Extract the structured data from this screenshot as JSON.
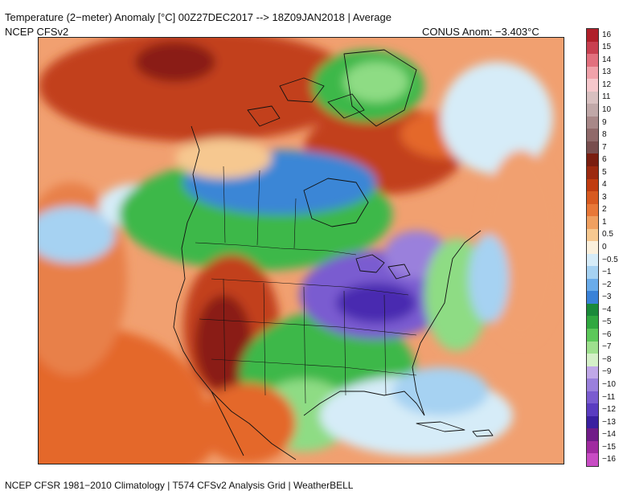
{
  "header": {
    "title": "Temperature (2−meter) Anomaly  [°C] 00Z27DEC2017 --> 18Z09JAN2018 | Average",
    "model": "NCEP CFSv2",
    "conus_anomaly": "CONUS Anom: −3.403°C"
  },
  "footer": "NCEP CFSR 1981−2010 Climatology | T574 CFSv2 Analysis Grid | WeatherBELL",
  "colorbar": {
    "labels": [
      "16",
      "15",
      "14",
      "13",
      "12",
      "11",
      "10",
      "9",
      "8",
      "7",
      "6",
      "5",
      "4",
      "3",
      "2",
      "1",
      "0.5",
      "0",
      "−0.5",
      "−1",
      "−2",
      "−3",
      "−4",
      "−5",
      "−6",
      "−7",
      "−8",
      "−9",
      "−10",
      "−11",
      "−12",
      "−13",
      "−14",
      "−15",
      "−16"
    ],
    "colors": [
      "#b0202a",
      "#c84050",
      "#e2707e",
      "#f0a2aa",
      "#f6c8cc",
      "#d8c0c0",
      "#c0a8a8",
      "#a88888",
      "#906a6a",
      "#784e4e",
      "#7a1e10",
      "#9c2a10",
      "#c03c10",
      "#d85a20",
      "#e87838",
      "#f0a060",
      "#f6c890",
      "#fbf0dc",
      "#d6ecf8",
      "#a6d2f2",
      "#6aacea",
      "#3a82d8",
      "#1a8a3a",
      "#30a840",
      "#5cc85a",
      "#9ee08e",
      "#d4f0c8",
      "#c0a8e8",
      "#9a80dc",
      "#7a5cd0",
      "#5a3cc0",
      "#3a20a0",
      "#701c88",
      "#a02aa0",
      "#c84cc4",
      "#e47ce0",
      "#f4b4f0"
    ]
  },
  "map": {
    "region": "North America",
    "colors": {
      "ocean_warm": "#f1a070",
      "warm": "#e4682c",
      "strong_warm": "#c2401c",
      "very_warm": "#8a1e12",
      "green": "#3cb84a",
      "light_green": "#8edc84",
      "blue": "#3a86d6",
      "light_blue": "#a6d2f2",
      "purple": "#7a5cd0",
      "deep_purple": "#4a2ab0"
    }
  }
}
